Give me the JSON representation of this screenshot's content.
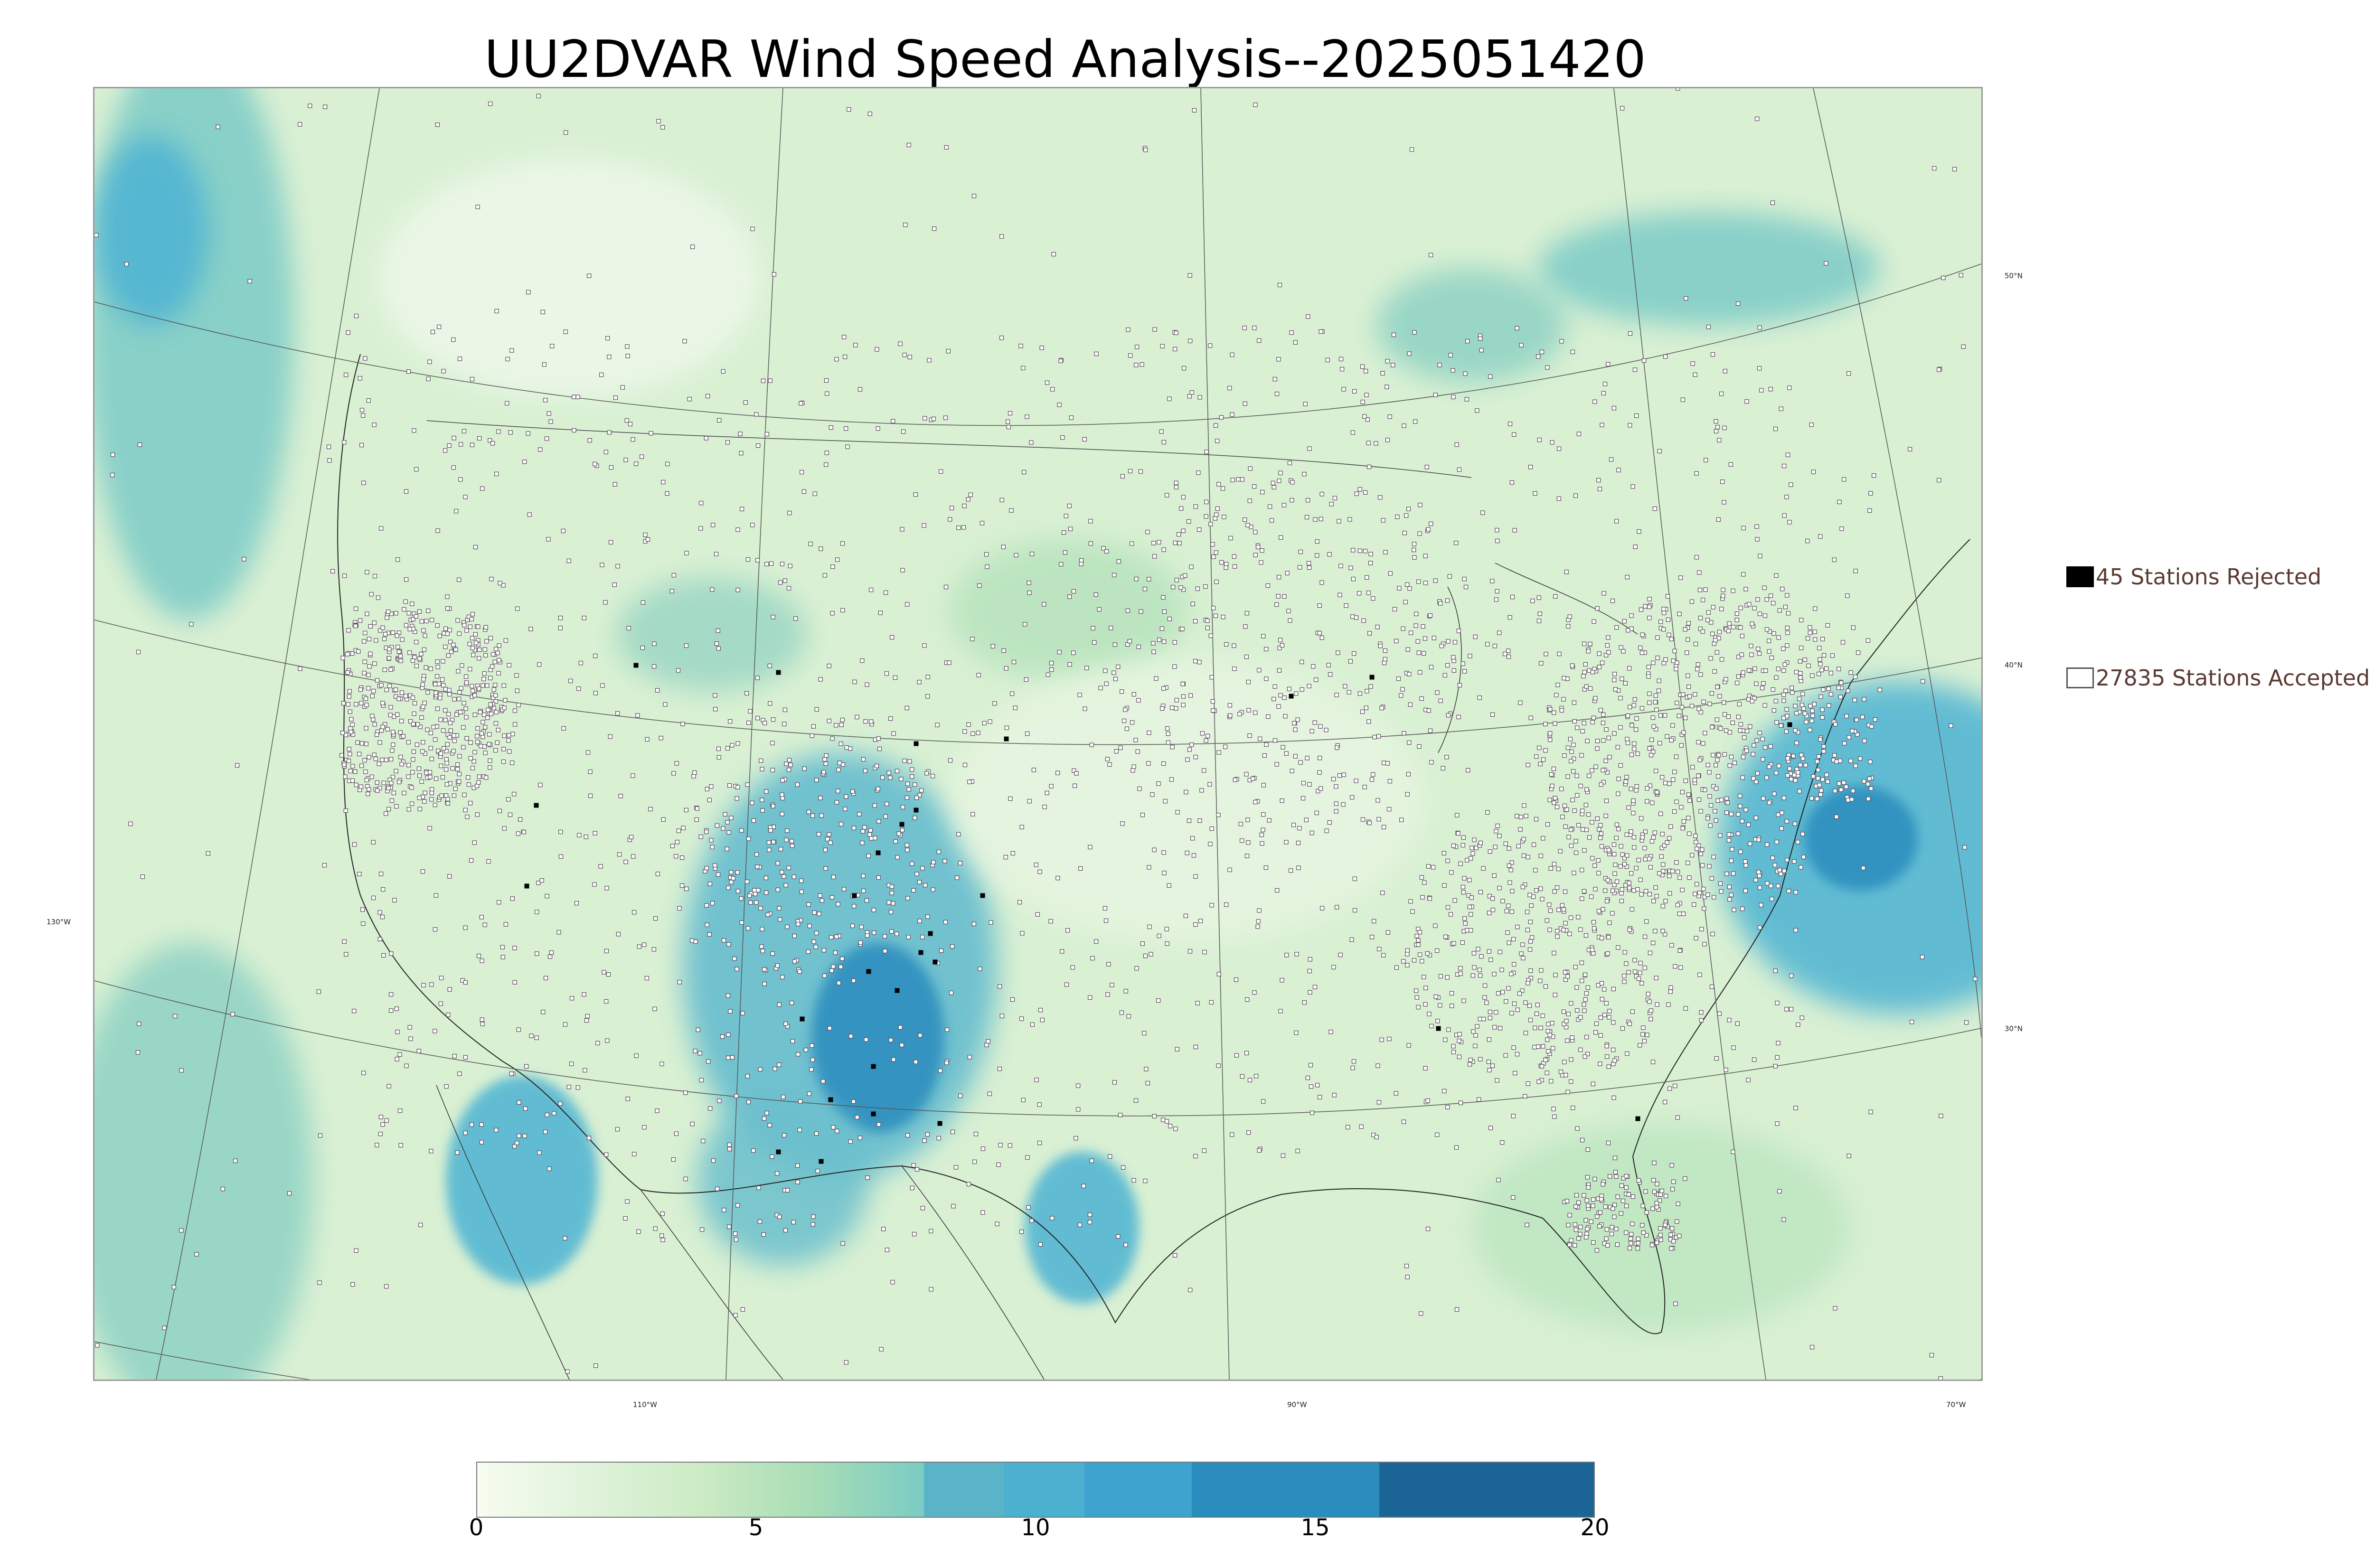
{
  "title": "UU2DVAR Wind Speed Analysis--2025051420",
  "legend": {
    "rejected_label": "45 Stations Rejected",
    "accepted_label": "27835 Stations Accepted",
    "rejected_color": "#000000",
    "accepted_color": "#ffffff"
  },
  "graticule": {
    "latitude_labels": [
      "50°N",
      "40°N",
      "30°N"
    ],
    "longitude_labels": [
      "130°W",
      "110°W",
      "90°W",
      "70°W"
    ]
  },
  "colorbar": {
    "min": 0,
    "max": 20,
    "tick_labels": [
      "0",
      "5",
      "10",
      "15",
      "20"
    ],
    "colors": [
      "#f7fcf0",
      "#e0f3db",
      "#ccebc5",
      "#a8ddb5",
      "#7bccc4",
      "#4eb3d3",
      "#2b8cbe",
      "#1a6496"
    ]
  },
  "colors": {
    "water_low": "#d4edd0",
    "land_low": "#e3f4dd",
    "high_wind": "#4eb3d3",
    "very_high_wind": "#2b8cbe",
    "station_outline": "#5a4a5a"
  }
}
